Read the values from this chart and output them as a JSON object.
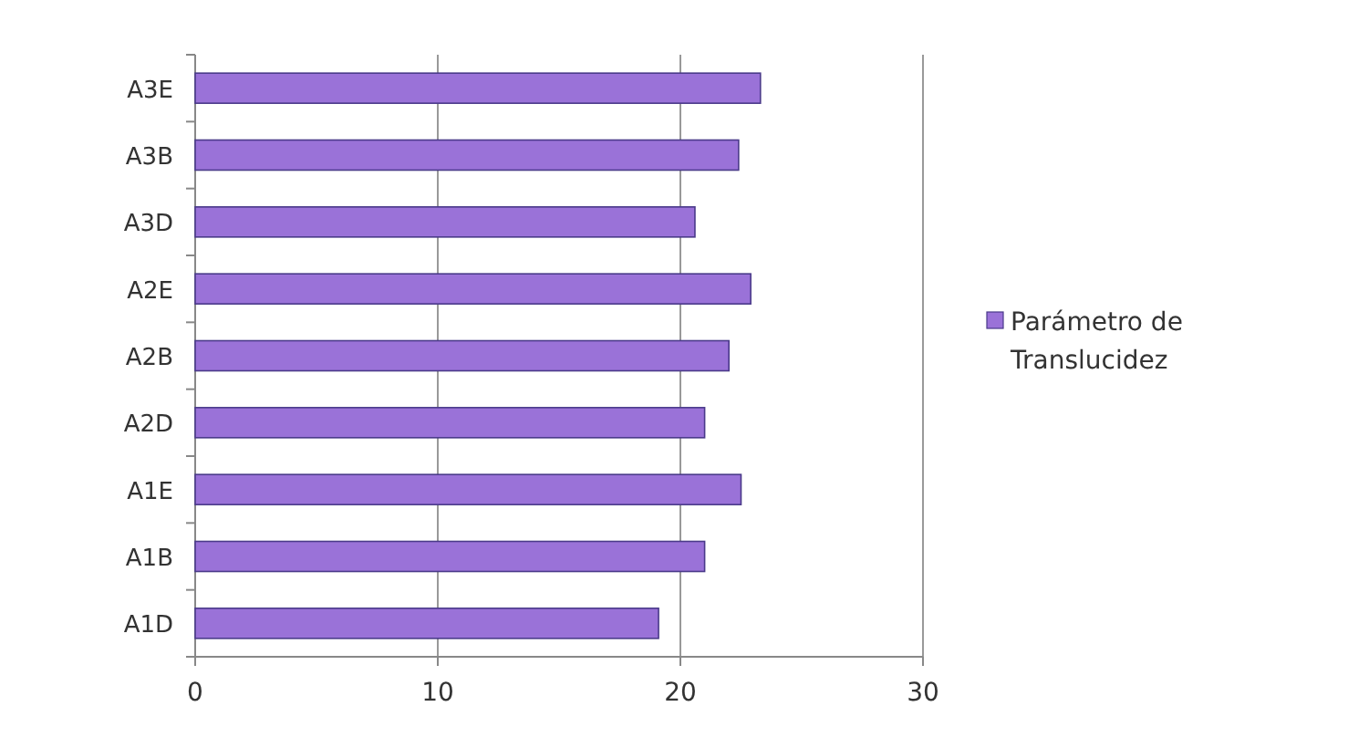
{
  "chart_data": {
    "type": "bar",
    "orientation": "horizontal",
    "categories": [
      "A3E",
      "A3B",
      "A3D",
      "A2E",
      "A2B",
      "A2D",
      "A1E",
      "A1B",
      "A1D"
    ],
    "series": [
      {
        "name": "Parámetro de Translucidez",
        "color": "#9a72d8",
        "values": [
          23.3,
          22.4,
          20.6,
          22.9,
          22.0,
          21.0,
          22.5,
          21.0,
          19.1
        ]
      }
    ],
    "xlim": [
      0,
      30
    ],
    "xticks": [
      0,
      10,
      20,
      30
    ],
    "grid": "x",
    "legend": "right"
  }
}
